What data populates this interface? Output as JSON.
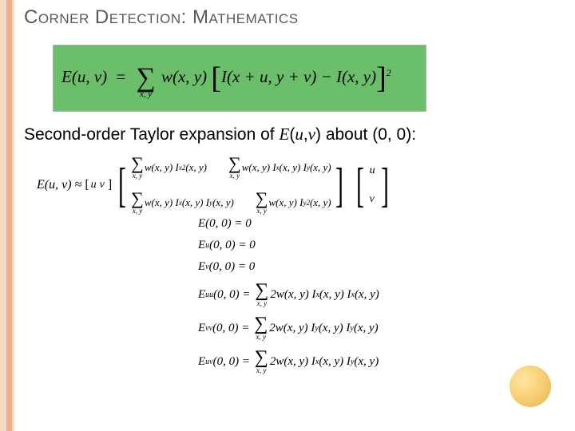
{
  "colors": {
    "leftStripeOuter": "#f5d9c8",
    "leftStripeInner": "#edb08e",
    "titleColor": "#595959",
    "greenBox": "#6bbf6b",
    "circleLight": "#ffe7a0",
    "circleDark": "#e0b050",
    "background": "#ffffff"
  },
  "title": "Corner Detection: Mathematics",
  "mainEquation": {
    "lhs": "E(u, v)",
    "eq": "=",
    "sumSub": "x, y",
    "w": "w(x, y)",
    "inner": "I(x + u, y + v) − I(x, y)",
    "power": "2"
  },
  "subtitle": {
    "prefix": "Second-order Taylor expansion of ",
    "func": "E",
    "args": "(u, v)",
    "suffix": " about (0, 0):"
  },
  "approx": {
    "lhs": "E(u, v) ≈",
    "rowVec": [
      "u",
      "v"
    ],
    "m11a": "w(x, y) I",
    "m11b": "(x, y)",
    "m12a": "w(x, y) I",
    "m12b": "(x, y) I",
    "m12c": "(x, y)",
    "m21a": "w(x, y) I",
    "m21b": "(x, y) I",
    "m21c": "(x, y)",
    "m22a": "w(x, y) I",
    "m22b": "(x, y)",
    "sumSub": "x, y",
    "colVec": [
      "u",
      "v"
    ]
  },
  "taylor": {
    "e0": "E(0, 0) = 0",
    "eu": "(0, 0) = 0",
    "euLabel": "E",
    "euSub": "u",
    "evLabel": "E",
    "evSub": "v",
    "ev": "(0, 0) = 0",
    "euu": {
      "label": "E",
      "sub": "uu",
      "lhs": "(0, 0) =",
      "sumSub": "x, y",
      "rhs1": "2w(x, y) I",
      "sx1": "x",
      "mid": "(x, y) I",
      "sx2": "x",
      "tail": "(x, y)"
    },
    "evv": {
      "label": "E",
      "sub": "vv",
      "lhs": "(0, 0) =",
      "sumSub": "x, y",
      "rhs1": "2w(x, y) I",
      "sx1": "y",
      "mid": "(x, y) I",
      "sx2": "y",
      "tail": "(x, y)"
    },
    "euv": {
      "label": "E",
      "sub": "uv",
      "lhs": "(0, 0) =",
      "sumSub": "x, y",
      "rhs1": "2w(x, y) I",
      "sx1": "x",
      "mid": "(x, y) I",
      "sx2": "y",
      "tail": "(x, y)"
    }
  }
}
